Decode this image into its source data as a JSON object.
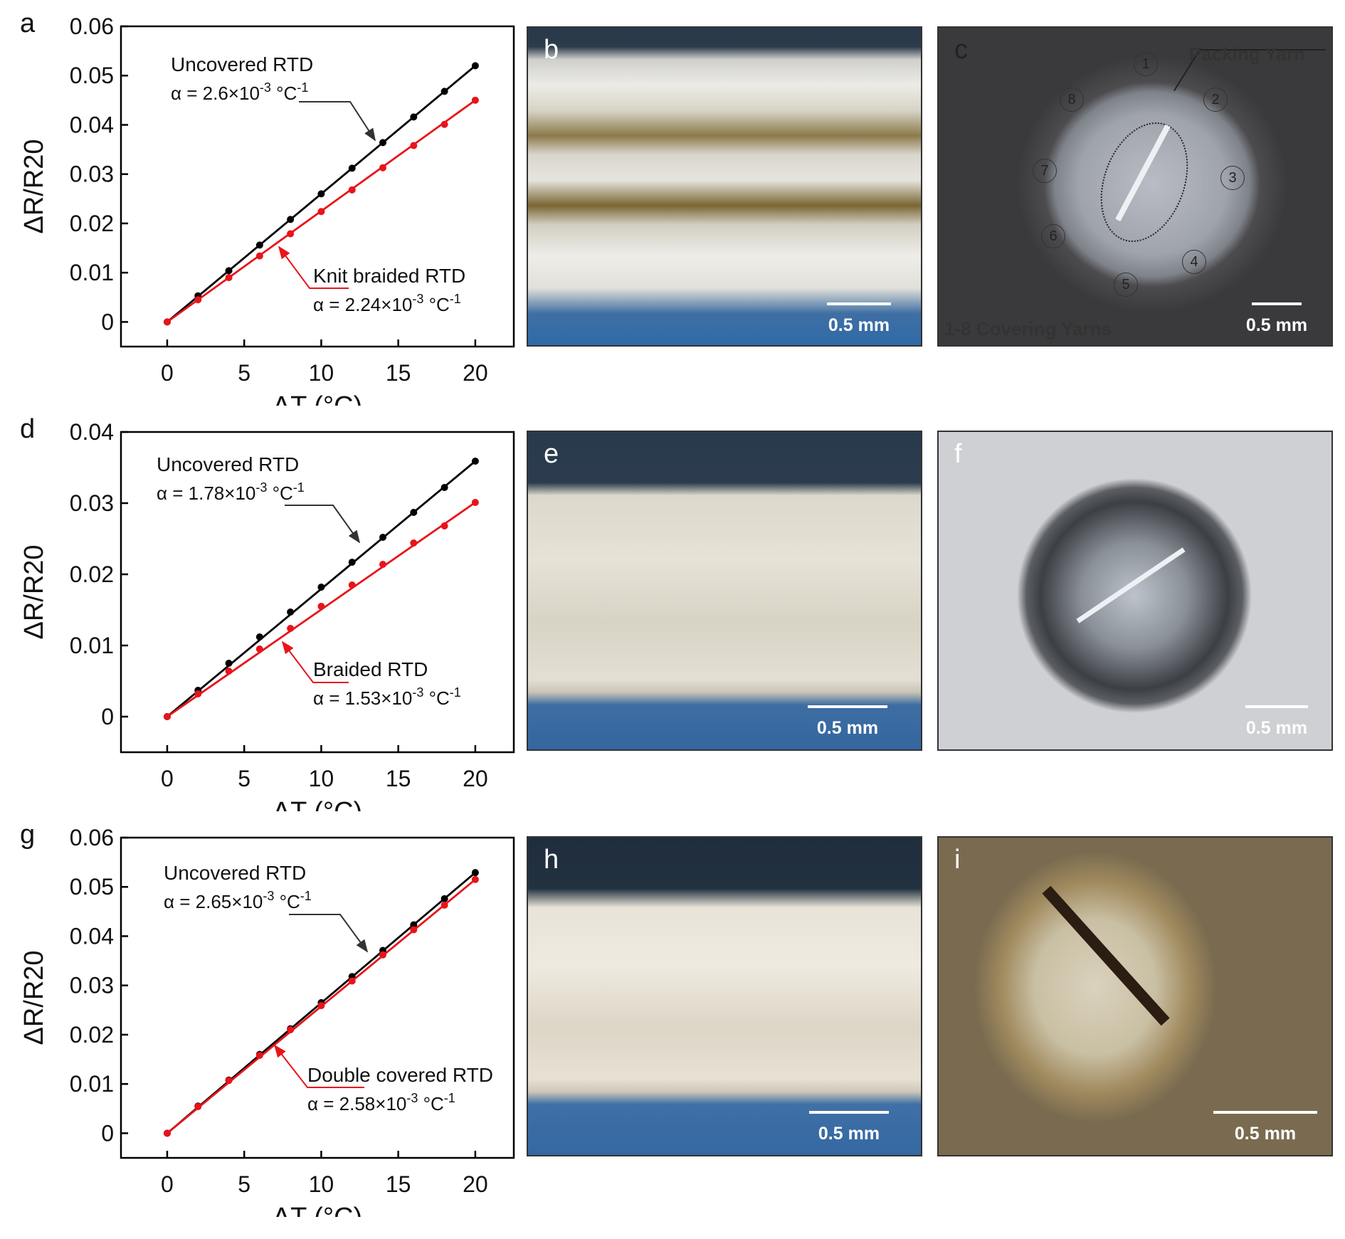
{
  "panels": {
    "a": "a",
    "b": "b",
    "c": "c",
    "d": "d",
    "e": "e",
    "f": "f",
    "g": "g",
    "h": "h",
    "i": "i"
  },
  "scale_bar_label": "0.5 mm",
  "panel_c": {
    "packing_yarn_label": "Packing Yarn",
    "covering_yarns_label": "1-8 Covering Yarns",
    "yarn_numbers": [
      "1",
      "2",
      "3",
      "4",
      "5",
      "6",
      "7",
      "8"
    ]
  },
  "chart_data": [
    {
      "type": "line",
      "panel": "a",
      "xlabel": "ΔT (°C)",
      "ylabel": "ΔR/R20",
      "xlim": [
        -3,
        22.5
      ],
      "ylim": [
        -0.005,
        0.06
      ],
      "xticks": [
        0,
        5,
        10,
        15,
        20
      ],
      "yticks": [
        0,
        0.01,
        0.02,
        0.03,
        0.04,
        0.05,
        0.06
      ],
      "ytick_labels": [
        "0",
        "0.01",
        "0.02",
        "0.03",
        "0.04",
        "0.05",
        "0.06"
      ],
      "x": [
        0,
        2,
        4,
        6,
        8,
        10,
        12,
        14,
        16,
        18,
        20
      ],
      "series": [
        {
          "name": "Uncovered RTD",
          "alpha": "α = 2.6×10-3 °C-1",
          "alpha_main": "α = 2.6×10",
          "exp": "-3",
          "unit": " °C",
          "unit_exp": "-1",
          "color": "#000000",
          "values": [
            0,
            0.0053,
            0.0104,
            0.0156,
            0.0208,
            0.026,
            0.0312,
            0.0364,
            0.0416,
            0.0468,
            0.052
          ]
        },
        {
          "name": "Knit braided RTD",
          "alpha": "α = 2.24×10-3 °C-1",
          "alpha_main": "α = 2.24×10",
          "exp": "-3",
          "unit": " °C",
          "unit_exp": "-1",
          "color": "#e8141b",
          "values": [
            0,
            0.0045,
            0.009,
            0.0134,
            0.0179,
            0.0224,
            0.0268,
            0.0313,
            0.0358,
            0.0401,
            0.045
          ]
        }
      ]
    },
    {
      "type": "line",
      "panel": "d",
      "xlabel": "ΔT (°C)",
      "ylabel": "ΔR/R20",
      "xlim": [
        -3,
        22.5
      ],
      "ylim": [
        -0.005,
        0.04
      ],
      "xticks": [
        0,
        5,
        10,
        15,
        20
      ],
      "yticks": [
        0,
        0.01,
        0.02,
        0.03,
        0.04
      ],
      "ytick_labels": [
        "0",
        "0.01",
        "0.02",
        "0.03",
        "0.04"
      ],
      "x": [
        0,
        2,
        4,
        6,
        8,
        10,
        12,
        14,
        16,
        18,
        20
      ],
      "series": [
        {
          "name": "Uncovered RTD",
          "alpha": "α = 1.78×10-3 °C-1",
          "alpha_main": "α = 1.78×10",
          "exp": "-3",
          "unit": " °C",
          "unit_exp": "-1",
          "color": "#000000",
          "values": [
            0,
            0.0037,
            0.0075,
            0.0112,
            0.0147,
            0.0182,
            0.0217,
            0.0252,
            0.0287,
            0.0322,
            0.0359
          ]
        },
        {
          "name": "Braided RTD",
          "alpha": "α = 1.53×10-3 °C-1",
          "alpha_main": "α = 1.53×10",
          "exp": "-3",
          "unit": " °C",
          "unit_exp": "-1",
          "color": "#e8141b",
          "values": [
            0,
            0.0032,
            0.0064,
            0.0095,
            0.0124,
            0.0155,
            0.0185,
            0.0214,
            0.0244,
            0.0268,
            0.0301
          ]
        }
      ]
    },
    {
      "type": "line",
      "panel": "g",
      "xlabel": "ΔT (°C)",
      "ylabel": "ΔR/R20",
      "xlim": [
        -3,
        22.5
      ],
      "ylim": [
        -0.005,
        0.06
      ],
      "xticks": [
        0,
        5,
        10,
        15,
        20
      ],
      "yticks": [
        0,
        0.01,
        0.02,
        0.03,
        0.04,
        0.05,
        0.06
      ],
      "ytick_labels": [
        "0",
        "0.01",
        "0.02",
        "0.03",
        "0.04",
        "0.05",
        "0.06"
      ],
      "x": [
        0,
        2,
        4,
        6,
        8,
        10,
        12,
        14,
        16,
        18,
        20
      ],
      "series": [
        {
          "name": "Uncovered RTD",
          "alpha": "α = 2.65×10-3 °C-1",
          "alpha_main": "α = 2.65×10",
          "exp": "-3",
          "unit": " °C",
          "unit_exp": "-1",
          "color": "#000000",
          "values": [
            0,
            0.0055,
            0.0108,
            0.016,
            0.0212,
            0.0265,
            0.0318,
            0.0371,
            0.0423,
            0.0476,
            0.0529
          ]
        },
        {
          "name": "Double covered RTD",
          "alpha": "α = 2.58×10-3 °C-1",
          "alpha_main": "α = 2.58×10",
          "exp": "-3",
          "unit": " °C",
          "unit_exp": "-1",
          "color": "#e8141b",
          "values": [
            0,
            0.0054,
            0.0107,
            0.0158,
            0.021,
            0.0259,
            0.0309,
            0.0362,
            0.0413,
            0.0463,
            0.0515
          ]
        }
      ]
    }
  ]
}
